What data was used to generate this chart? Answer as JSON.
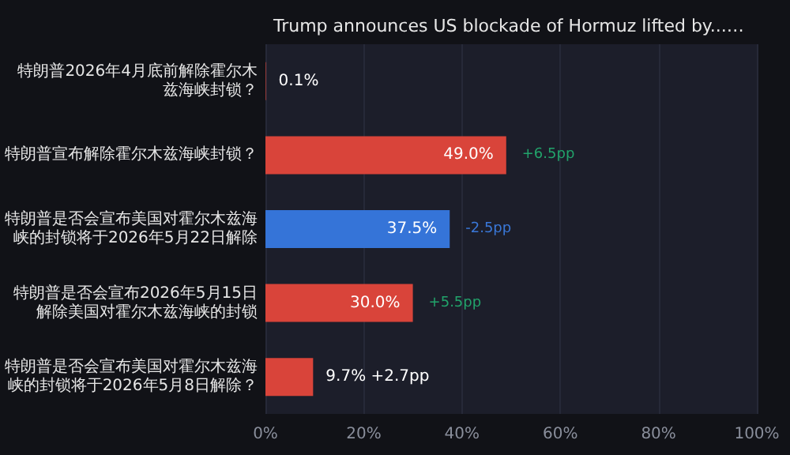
{
  "chart_data": {
    "type": "bar",
    "orientation": "horizontal",
    "title": "Trump announces US blockade of Hormuz lifted by...…",
    "categories": [
      "特朗普2026年4月底前解除霍尔木兹海峡封锁？",
      "特朗普宣布解除霍尔木兹海峡封锁？",
      "特朗普是否会宣布美国对霍尔木兹海峡的封锁将于2026年5月22日解除",
      "特朗普是否会宣布2026年5月15日解除美国对霍尔木兹海峡的封锁",
      "特朗普是否会宣布美国对霍尔木兹海峡的封锁将于2026年5月8日解除？"
    ],
    "values": [
      0.1,
      49.0,
      37.5,
      30.0,
      9.7
    ],
    "colors": [
      "#d9443a",
      "#d9443a",
      "#3574d8",
      "#d9443a",
      "#d9443a"
    ],
    "value_labels": [
      "0.1%",
      "49.0%",
      "37.5%",
      "30.0%",
      "9.7% +2.7pp"
    ],
    "annotations": [
      {
        "text": "+6.5pp",
        "x": 49.0,
        "y": "特朗普宣布解除霍尔木兹海峡封锁？"
      },
      {
        "text": "-2.5pp",
        "x": 37.5,
        "y": "特朗普是否会宣布美国对霍尔木兹海峡的封锁将于2026年5月22日解除"
      },
      {
        "text": "+5.5pp",
        "x": 30.0,
        "y": "特朗普是否会宣布2026年5月15日解除美国对霍尔木兹海峡的封锁"
      }
    ],
    "xlim": [
      0,
      100
    ],
    "xticks": [
      {
        "value": 0,
        "label": "0%"
      },
      {
        "value": 20,
        "label": "20%"
      },
      {
        "value": 40,
        "label": "40%"
      },
      {
        "value": 60,
        "label": "60%"
      },
      {
        "value": 80,
        "label": "80%"
      },
      {
        "value": 100,
        "label": "100%"
      }
    ],
    "grid": "x"
  }
}
